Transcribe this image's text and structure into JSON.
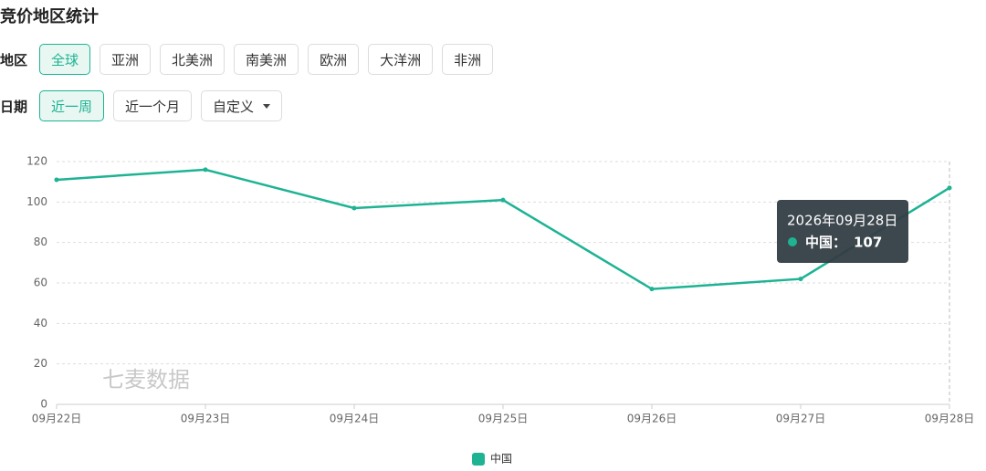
{
  "header": {
    "title": "竞价地区统计"
  },
  "filters": {
    "region": {
      "label": "地区",
      "options": [
        "全球",
        "亚洲",
        "北美洲",
        "南美洲",
        "欧洲",
        "大洋洲",
        "非洲"
      ],
      "active": 0
    },
    "date": {
      "label": "日期",
      "options": [
        "近一周",
        "近一个月",
        "自定义"
      ],
      "active": 0
    }
  },
  "chart_data": {
    "type": "line",
    "categories": [
      "09月22日",
      "09月23日",
      "09月24日",
      "09月25日",
      "09月26日",
      "09月27日",
      "09月28日"
    ],
    "series": [
      {
        "name": "中国",
        "color": "#1db393",
        "values": [
          111,
          116,
          97,
          101,
          57,
          62,
          107
        ]
      }
    ],
    "ylim": [
      0,
      120
    ],
    "yticks": [
      0,
      20,
      40,
      60,
      80,
      100,
      120
    ],
    "grid": true,
    "legend": "bottom",
    "watermark": "七麦数据",
    "tooltip": {
      "title": "2026年09月28日",
      "label": "中国："
    }
  }
}
